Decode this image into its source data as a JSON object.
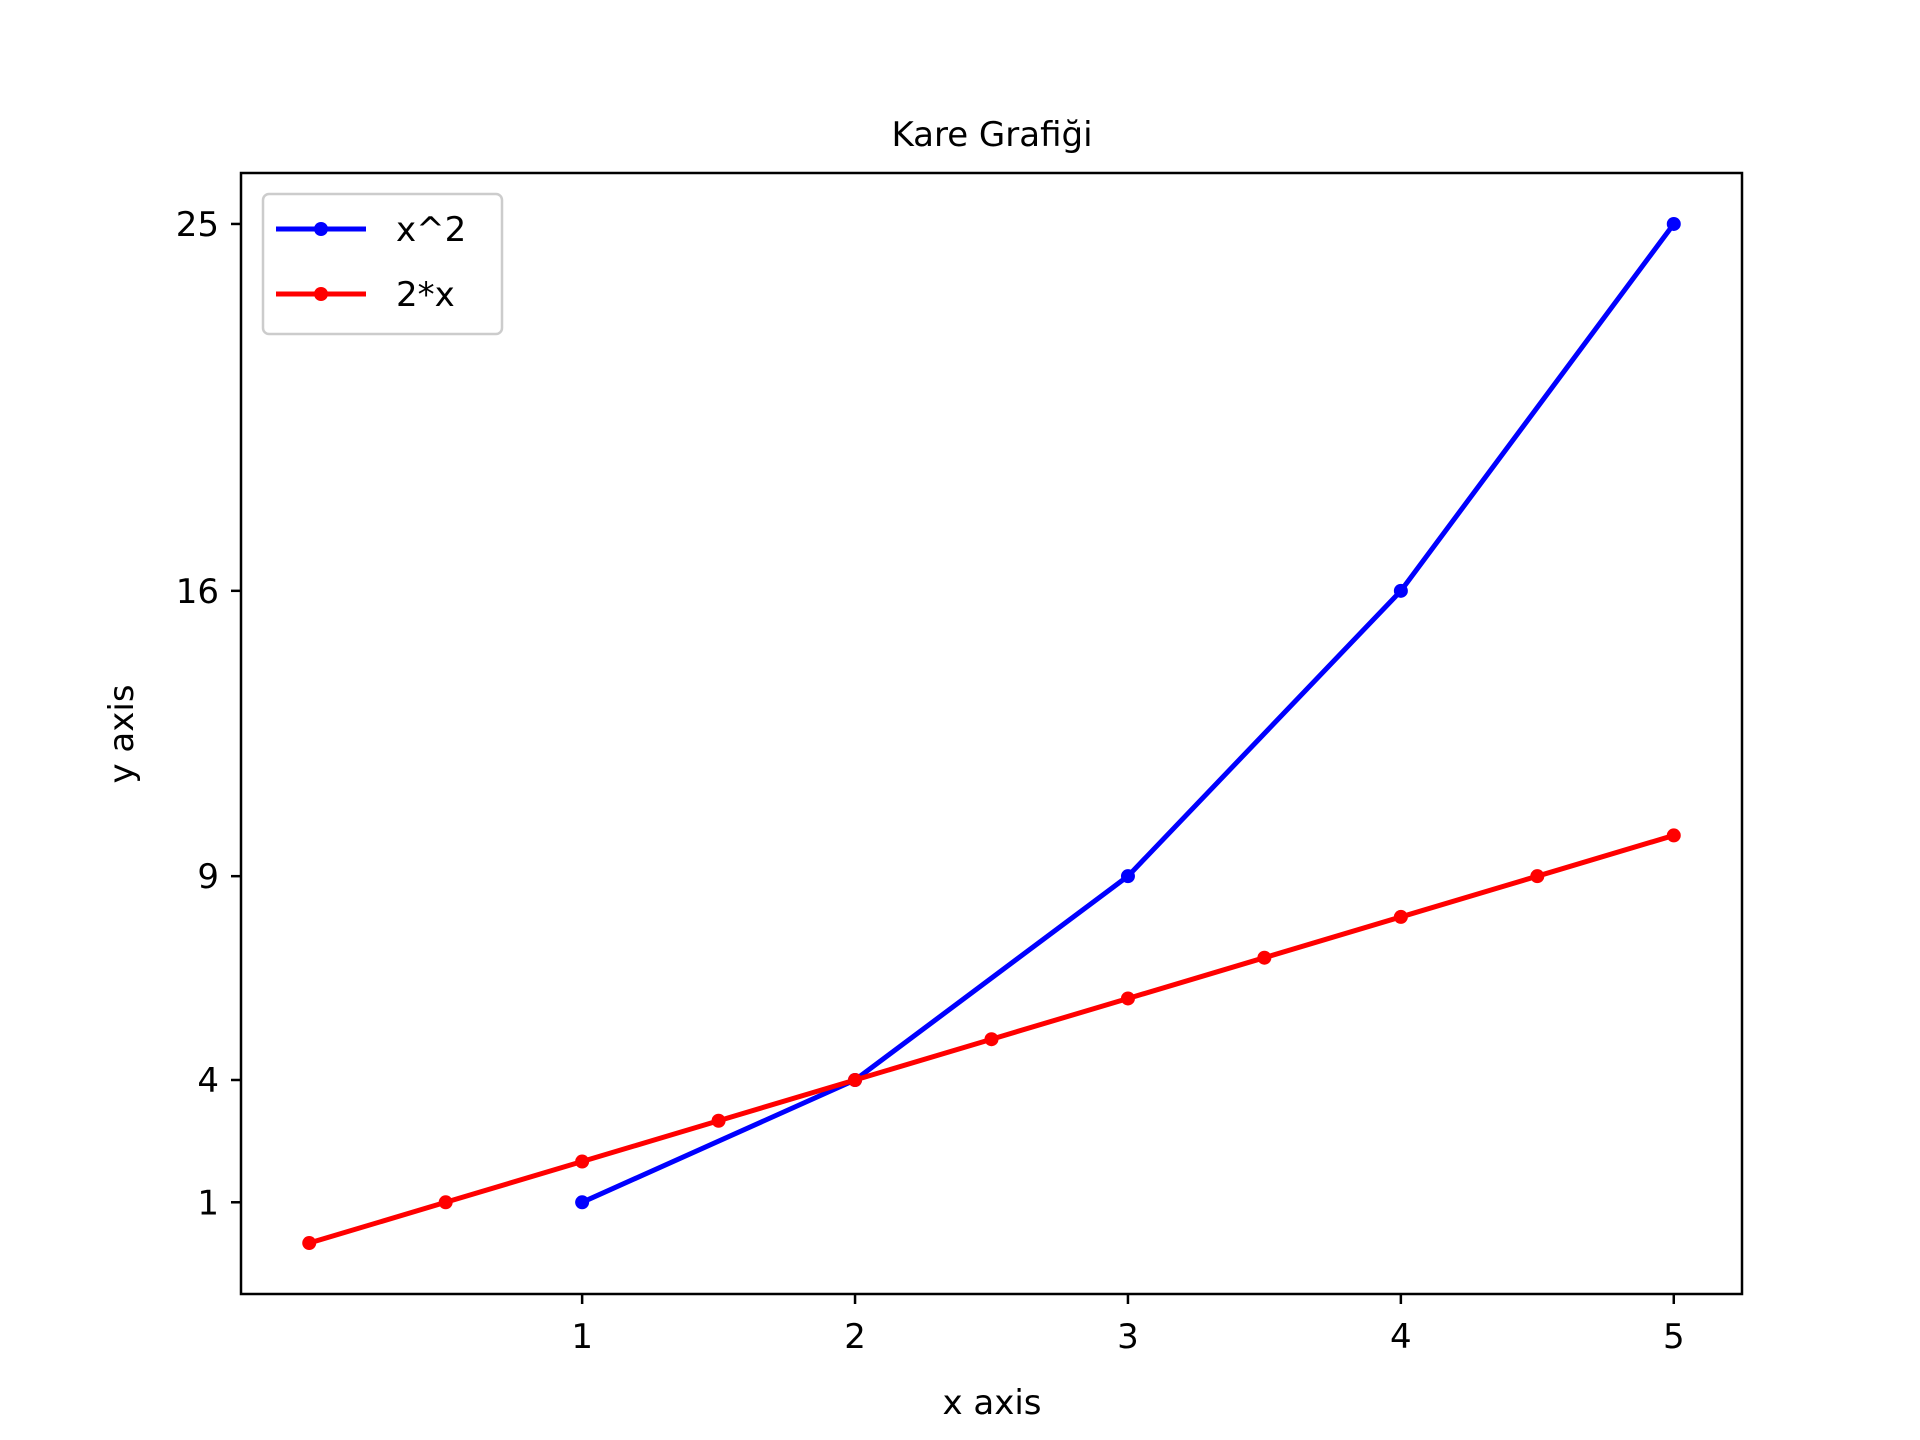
{
  "chart_data": {
    "type": "line",
    "title": "Kare Grafiği",
    "xlabel": "x axis",
    "ylabel": "y axis",
    "xlim": [
      -0.25,
      5.25
    ],
    "ylim": [
      -1.25,
      26.25
    ],
    "xticks": [
      1,
      2,
      3,
      4,
      5
    ],
    "xtick_labels": [
      "1",
      "2",
      "3",
      "4",
      "5"
    ],
    "yticks": [
      1,
      4,
      9,
      16,
      25
    ],
    "ytick_labels": [
      "1",
      "4",
      "9",
      "16",
      "25"
    ],
    "grid": false,
    "legend_position": "top-left",
    "series": [
      {
        "name": "x^2",
        "color": "#0000ff",
        "x": [
          1,
          2,
          3,
          4,
          5
        ],
        "y": [
          1,
          4,
          9,
          16,
          25
        ]
      },
      {
        "name": "2*x",
        "color": "#ff0000",
        "x": [
          0,
          0.5,
          1,
          1.5,
          2,
          2.5,
          3,
          3.5,
          4,
          4.5,
          5
        ],
        "y": [
          0,
          1,
          2,
          3,
          4,
          5,
          6,
          7,
          8,
          9,
          10
        ]
      }
    ]
  }
}
